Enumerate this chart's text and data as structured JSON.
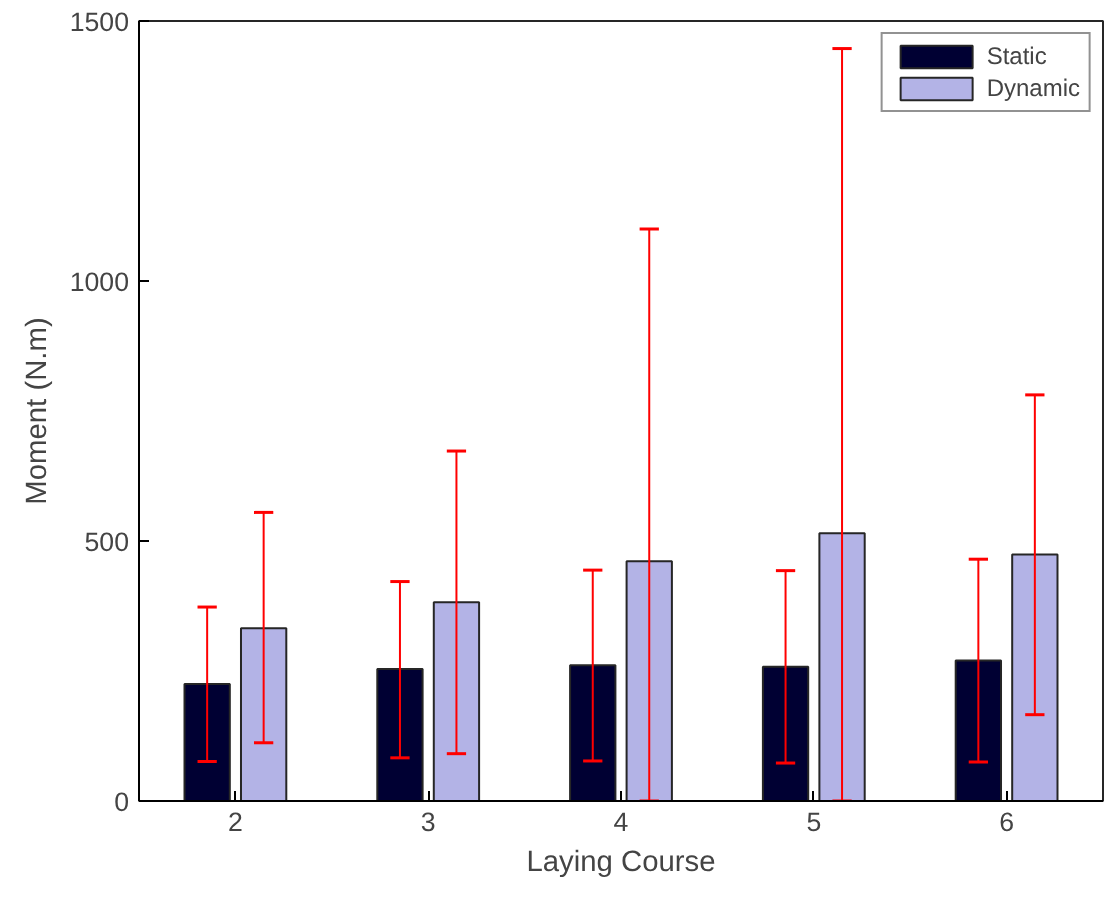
{
  "chart_data": {
    "type": "bar",
    "xlabel": "Laying Course",
    "ylabel": "Moment (N.m)",
    "categories": [
      "2",
      "3",
      "4",
      "5",
      "6"
    ],
    "series": [
      {
        "name": "Static",
        "color": "#000033",
        "values": [
          225,
          254,
          261,
          258,
          270
        ],
        "errors": [
          [
            76,
            373
          ],
          [
            83,
            422
          ],
          [
            77,
            444
          ],
          [
            73,
            443
          ],
          [
            75,
            465
          ]
        ]
      },
      {
        "name": "Dynamic",
        "color": "#b3b3e6",
        "values": [
          332,
          382,
          461,
          515,
          474
        ],
        "errors": [
          [
            112,
            555
          ],
          [
            91,
            673
          ],
          [
            0,
            1100
          ],
          [
            0,
            1447
          ],
          [
            166,
            781
          ]
        ]
      }
    ],
    "ylim": [
      0,
      1500
    ],
    "yticks": [
      0,
      500,
      1000,
      1500
    ],
    "grid": false,
    "legend": "top right"
  }
}
